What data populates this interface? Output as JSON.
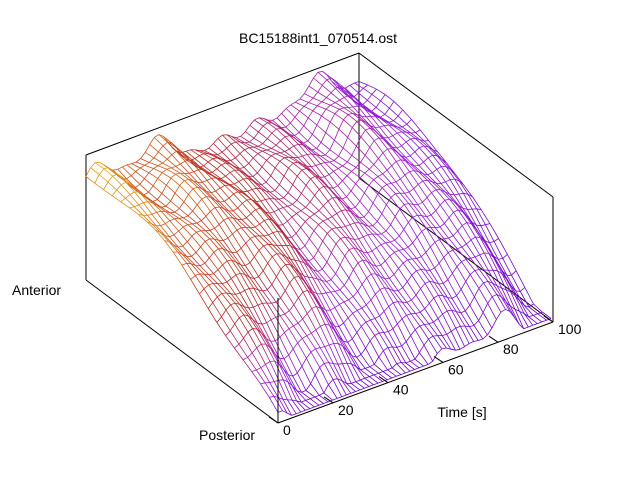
{
  "chart_data": {
    "type": "surface",
    "title": "BC15188int1_070514.ost",
    "xlabel": "Time [s]",
    "xticks": [
      "0",
      "20",
      "40",
      "60",
      "80",
      "100"
    ],
    "xlim": [
      0,
      100
    ],
    "y_side_labels": {
      "top": "Anterior",
      "bottom": "Posterior"
    },
    "colormap": [
      "#6a00c8",
      "#9b1fd6",
      "#b3262e",
      "#c8461e",
      "#e3a81e",
      "#f4ea20"
    ],
    "grid": false,
    "legend": "none"
  }
}
